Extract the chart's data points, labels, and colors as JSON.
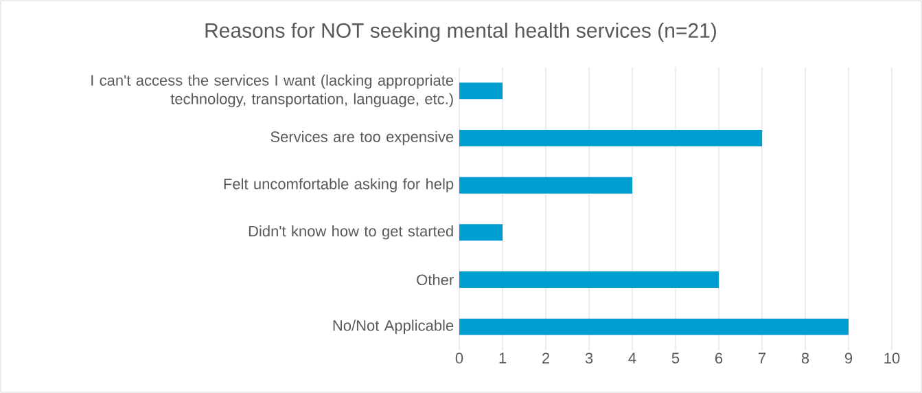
{
  "chart_data": {
    "type": "bar",
    "orientation": "horizontal",
    "title": "Reasons for NOT seeking mental health services (n=21)",
    "categories": [
      "I can't access the services I want (lacking appropriate technology, transportation, language, etc.)",
      "Services are too expensive",
      "Felt uncomfortable asking for help",
      "Didn't know how to get started",
      "Other",
      "No/Not Applicable"
    ],
    "values": [
      1,
      7,
      4,
      1,
      6,
      9
    ],
    "color": "#009dd1",
    "xlim": [
      0,
      10
    ],
    "xticks": [
      0,
      1,
      2,
      3,
      4,
      5,
      6,
      7,
      8,
      9,
      10
    ],
    "grid": "x"
  }
}
